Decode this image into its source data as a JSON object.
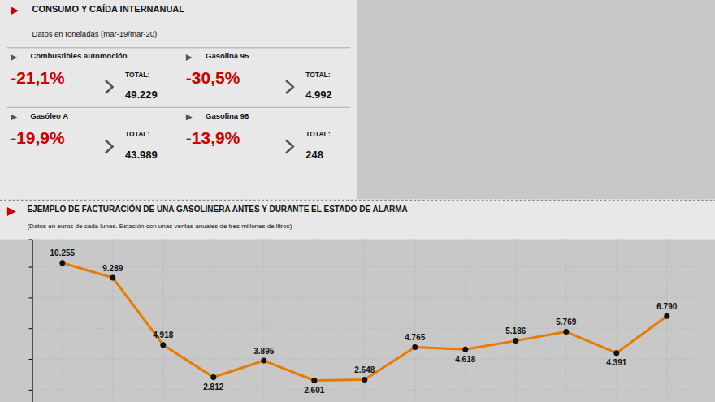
{
  "chart_data": {
    "type": "line",
    "title": "EJEMPLO DE FACTURACIÓN DE UNA GASOLINERA ANTES Y DURANTE EL ESTADO DE ALARMA",
    "subtitle": "(Datos en euros de cada lunes. Estación con unas ventas anuales de tres millones de litros)",
    "annotations": [
      "CONSUMO Y CAÍDA INTERNANUAL",
      "Datos en toneladas  (mar-19/mar-20)",
      "Combustibles automoción",
      "-21,1%",
      "TOTAL:",
      "49.229",
      "Gasolina 95",
      "-30,5%",
      "TOTAL:",
      "4.992",
      "Gasóleo A",
      "-19,9%",
      "TOTAL:",
      "43.989",
      "Gasolina 98",
      "-13,9%",
      "TOTAL:",
      "248"
    ],
    "categories": [
      null,
      null,
      null,
      null,
      null,
      null,
      null,
      null,
      null,
      null,
      null,
      null,
      null
    ],
    "values": [
      10255,
      9289,
      4918,
      2812,
      3895,
      2601,
      2648,
      4765,
      4618,
      5186,
      5769,
      4391,
      6790
    ],
    "value_labels": [
      "10.255",
      "9.289",
      "4.918",
      "2.812",
      "3.895",
      "2.601",
      "2.648",
      "4.765",
      "4.618",
      "5.186",
      "5.769",
      "4.391",
      "6.790"
    ],
    "color": "#E87B00",
    "marker": "circle",
    "ylim": [
      1200,
      11800
    ],
    "yticks": [
      2000,
      4000,
      6000,
      8000,
      10000
    ],
    "grid": true,
    "data_labels": true,
    "tick_labels": false
  }
}
